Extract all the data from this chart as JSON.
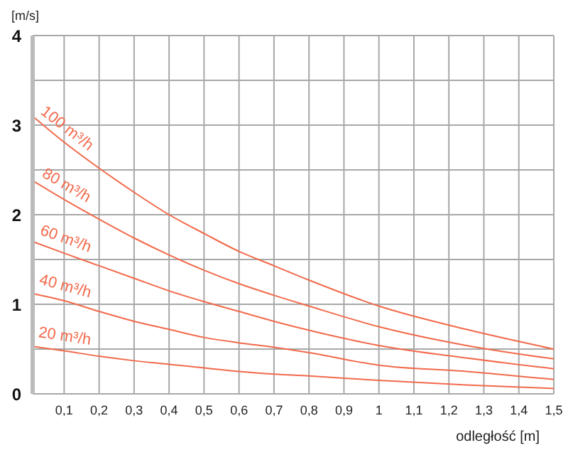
{
  "chart_data": {
    "type": "line",
    "xlabel": "odległość [m]",
    "ylabel": "[m/s]",
    "x": [
      0.01,
      0.1,
      0.2,
      0.3,
      0.4,
      0.5,
      0.6,
      0.7,
      0.8,
      1.0,
      1.25,
      1.5
    ],
    "series": [
      {
        "name": "100 m³/h",
        "color": "#f26a4b",
        "values": [
          3.1,
          2.81,
          2.52,
          2.25,
          2.0,
          1.79,
          1.59,
          1.43,
          1.27,
          0.98,
          0.72,
          0.5
        ]
      },
      {
        "name": "80 m³/h",
        "color": "#f26a4b",
        "values": [
          2.38,
          2.17,
          1.95,
          1.74,
          1.55,
          1.38,
          1.23,
          1.1,
          0.98,
          0.75,
          0.54,
          0.39
        ]
      },
      {
        "name": "60 m³/h",
        "color": "#f26a4b",
        "values": [
          1.7,
          1.57,
          1.43,
          1.29,
          1.15,
          1.03,
          0.92,
          0.81,
          0.71,
          0.54,
          0.4,
          0.28
        ]
      },
      {
        "name": "40 m³/h",
        "color": "#f26a4b",
        "values": [
          1.12,
          1.04,
          0.92,
          0.81,
          0.72,
          0.63,
          0.57,
          0.52,
          0.46,
          0.32,
          0.25,
          0.16
        ]
      },
      {
        "name": "20 m³/h",
        "color": "#f26a4b",
        "values": [
          0.53,
          0.48,
          0.42,
          0.37,
          0.33,
          0.29,
          0.25,
          0.22,
          0.2,
          0.15,
          0.1,
          0.06
        ]
      }
    ],
    "xlim": [
      0.01,
      1.5
    ],
    "xticks": [
      {
        "value": 0.1,
        "label": "0,1"
      },
      {
        "value": 0.2,
        "label": "0,2"
      },
      {
        "value": 0.3,
        "label": "0,3"
      },
      {
        "value": 0.4,
        "label": "0,4"
      },
      {
        "value": 0.5,
        "label": "0,5"
      },
      {
        "value": 0.6,
        "label": "0,6"
      },
      {
        "value": 0.7,
        "label": "0,7"
      },
      {
        "value": 0.8,
        "label": "0,8"
      },
      {
        "value": 0.9,
        "label": "0,9"
      },
      1,
      {
        "value": 1.1,
        "label": "1,1"
      },
      {
        "value": 1.2,
        "label": "1,2"
      },
      {
        "value": 1.3,
        "label": "1,3"
      },
      {
        "value": 1.4,
        "label": "1,4"
      },
      {
        "value": 1.5,
        "label": "1,5"
      }
    ],
    "ylim": [
      0,
      4
    ],
    "yticks": [
      0,
      {
        "value": 0.5,
        "label": null
      },
      1,
      {
        "value": 1.5,
        "label": null
      },
      2,
      {
        "value": 2.5,
        "label": null
      },
      3,
      {
        "value": 3.5,
        "label": null
      },
      4
    ],
    "grid": true,
    "marker": "none",
    "line_style": "solid"
  }
}
